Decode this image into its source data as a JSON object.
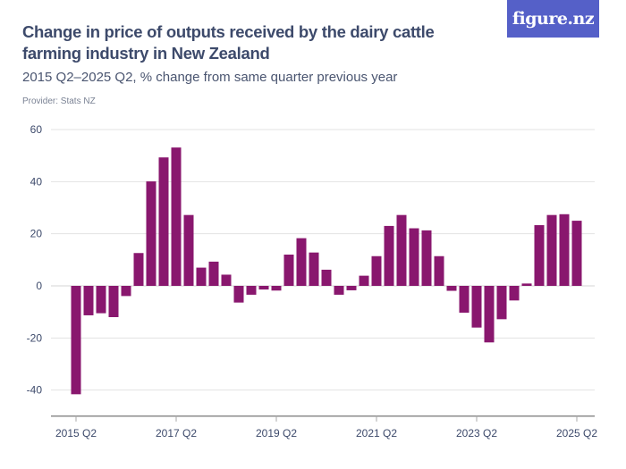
{
  "header": {
    "title": "Change in price of outputs received by the dairy cattle farming industry in New Zealand",
    "subtitle": "2015 Q2–2025 Q2, % change from same quarter previous year",
    "provider": "Provider: Stats NZ",
    "logo": "figure.nz"
  },
  "colors": {
    "bar": "#89176e",
    "logo_bg": "#5560c8",
    "grid": "#e3e3e3"
  },
  "chart_data": {
    "type": "bar",
    "title": "Change in price of outputs received by the dairy cattle farming industry in New Zealand",
    "subtitle": "2015 Q2–2025 Q2, % change from same quarter previous year",
    "categories": [
      "2015 Q2",
      "2015 Q3",
      "2015 Q4",
      "2016 Q1",
      "2016 Q2",
      "2016 Q3",
      "2016 Q4",
      "2017 Q1",
      "2017 Q2",
      "2017 Q3",
      "2017 Q4",
      "2018 Q1",
      "2018 Q2",
      "2018 Q3",
      "2018 Q4",
      "2019 Q1",
      "2019 Q2",
      "2019 Q3",
      "2019 Q4",
      "2020 Q1",
      "2020 Q2",
      "2020 Q3",
      "2020 Q4",
      "2021 Q1",
      "2021 Q2",
      "2021 Q3",
      "2021 Q4",
      "2022 Q1",
      "2022 Q2",
      "2022 Q3",
      "2022 Q4",
      "2023 Q1",
      "2023 Q2",
      "2023 Q3",
      "2023 Q4",
      "2024 Q1",
      "2024 Q2",
      "2024 Q3",
      "2024 Q4",
      "2025 Q1",
      "2025 Q2"
    ],
    "values": [
      -41.6,
      -11.3,
      -10.5,
      -12.0,
      -3.9,
      12.6,
      40.1,
      49.3,
      53.1,
      27.2,
      7.0,
      9.3,
      4.3,
      -6.4,
      -3.4,
      -1.4,
      -1.8,
      12.0,
      18.3,
      12.8,
      6.2,
      -3.4,
      -1.7,
      3.9,
      11.4,
      23.0,
      27.2,
      22.1,
      21.3,
      11.4,
      -1.9,
      -10.3,
      -16.0,
      -21.7,
      -12.8,
      -5.6,
      0.9,
      23.3,
      27.2,
      27.5,
      25.0
    ],
    "x_tick_labels": [
      "2015 Q2",
      "2017 Q2",
      "2019 Q2",
      "2021 Q2",
      "2023 Q2",
      "2025 Q2"
    ],
    "y_ticks": [
      -40,
      -20,
      0,
      20,
      40,
      60
    ],
    "ylim": [
      -50,
      60
    ],
    "xlabel": "",
    "ylabel": "",
    "grid": true,
    "legend": "none"
  }
}
